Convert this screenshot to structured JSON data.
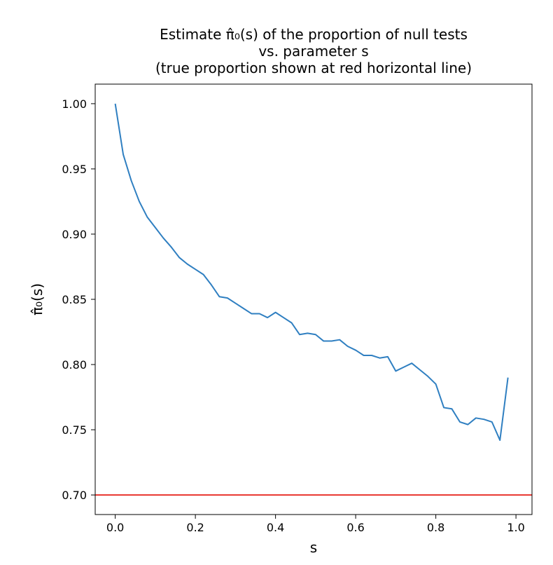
{
  "chart_data": {
    "type": "line",
    "title_lines": [
      "Estimate π̂₀(s) of the proportion of null tests",
      "vs. parameter s",
      "(true proportion shown at red horizontal line)"
    ],
    "xlabel": "s",
    "ylabel": "π̂₀(s)",
    "xlim": [
      -0.05,
      1.04
    ],
    "ylim": [
      0.685,
      1.015
    ],
    "xticks": [
      0.0,
      0.2,
      0.4,
      0.6,
      0.8,
      1.0
    ],
    "xtick_labels": [
      "0.0",
      "0.2",
      "0.4",
      "0.6",
      "0.8",
      "1.0"
    ],
    "yticks": [
      0.7,
      0.75,
      0.8,
      0.85,
      0.9,
      0.95,
      1.0
    ],
    "ytick_labels": [
      "0.70",
      "0.75",
      "0.80",
      "0.85",
      "0.90",
      "0.95",
      "1.00"
    ],
    "grid": false,
    "series": [
      {
        "color": "#2f7fc1",
        "x": [
          0.0,
          0.02,
          0.04,
          0.06,
          0.08,
          0.1,
          0.12,
          0.14,
          0.16,
          0.18,
          0.2,
          0.22,
          0.24,
          0.26,
          0.28,
          0.3,
          0.32,
          0.34,
          0.36,
          0.38,
          0.4,
          0.42,
          0.44,
          0.46,
          0.48,
          0.5,
          0.52,
          0.54,
          0.56,
          0.58,
          0.6,
          0.62,
          0.64,
          0.66,
          0.68,
          0.7,
          0.72,
          0.74,
          0.76,
          0.78,
          0.8,
          0.82,
          0.84,
          0.86,
          0.88,
          0.9,
          0.92,
          0.94,
          0.96,
          0.98
        ],
        "y": [
          1.0,
          0.961,
          0.941,
          0.925,
          0.913,
          0.905,
          0.897,
          0.89,
          0.882,
          0.877,
          0.873,
          0.869,
          0.861,
          0.852,
          0.851,
          0.847,
          0.843,
          0.839,
          0.839,
          0.836,
          0.84,
          0.836,
          0.832,
          0.823,
          0.824,
          0.823,
          0.818,
          0.818,
          0.819,
          0.814,
          0.811,
          0.807,
          0.807,
          0.805,
          0.806,
          0.795,
          0.798,
          0.801,
          0.796,
          0.791,
          0.785,
          0.767,
          0.766,
          0.756,
          0.754,
          0.759,
          0.758,
          0.756,
          0.742,
          0.79
        ]
      }
    ],
    "reference_line": {
      "orientation": "horizontal",
      "y": 0.7,
      "color": "#e8342d"
    }
  }
}
